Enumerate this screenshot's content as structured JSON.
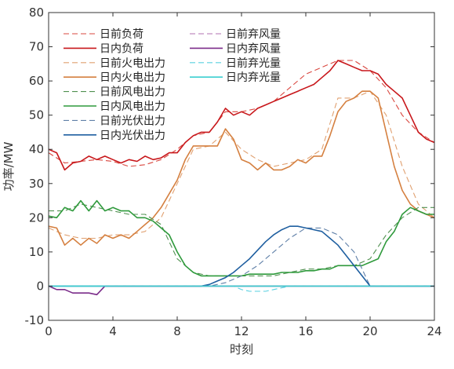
{
  "chart_data": {
    "type": "line",
    "title": "",
    "xlabel": "时刻",
    "ylabel": "功率/MW",
    "xlim": [
      0,
      24
    ],
    "ylim": [
      -10,
      80
    ],
    "xticks": [
      0,
      4,
      8,
      12,
      16,
      20,
      24
    ],
    "yticks": [
      -10,
      0,
      10,
      20,
      30,
      40,
      50,
      60,
      70,
      80
    ],
    "grid": false,
    "legend_position": "top-left, two columns",
    "series": [
      {
        "name": "日前负荷",
        "color": "#d9473f",
        "dash": "dashed",
        "x": [
          0,
          1,
          2,
          3,
          4,
          5,
          6,
          7,
          8,
          9,
          10,
          11,
          12,
          13,
          14,
          15,
          16,
          17,
          18,
          19,
          20,
          21,
          22,
          23,
          24
        ],
        "y": [
          39,
          36,
          36.5,
          37,
          36.5,
          35,
          35.5,
          37,
          40,
          44,
          45,
          51,
          51,
          52,
          54,
          58,
          62,
          64,
          66,
          66,
          63,
          58,
          50,
          45,
          42
        ]
      },
      {
        "name": "日内负荷",
        "color": "#c8171b",
        "dash": "solid",
        "x": [
          0,
          0.5,
          1,
          1.5,
          2,
          2.5,
          3,
          3.5,
          4,
          4.5,
          5,
          5.5,
          6,
          6.5,
          7,
          7.5,
          8,
          8.5,
          9,
          9.5,
          10,
          10.5,
          11,
          11.5,
          12,
          12.5,
          13,
          13.5,
          14,
          14.5,
          15,
          15.5,
          16,
          16.5,
          17,
          17.5,
          18,
          18.5,
          19,
          19.5,
          20,
          20.5,
          21,
          21.5,
          22,
          22.5,
          23,
          23.5,
          24
        ],
        "y": [
          40,
          39,
          34,
          36,
          36.5,
          38,
          37,
          38,
          37,
          36,
          37,
          36.5,
          38,
          37,
          37.5,
          39,
          39,
          42,
          44,
          45,
          45,
          48,
          52,
          50,
          51,
          50,
          52,
          53,
          54,
          55,
          56,
          57,
          58,
          59,
          61,
          63,
          66,
          65,
          64,
          63,
          63,
          62,
          59,
          57,
          55,
          50,
          45,
          43,
          42
        ]
      },
      {
        "name": "日前火电出力",
        "color": "#e0a070",
        "dash": "dashed",
        "x": [
          0,
          1,
          2,
          3,
          4,
          5,
          6,
          7,
          8,
          9,
          10,
          11,
          12,
          13,
          14,
          15,
          16,
          17,
          18,
          19,
          20,
          21,
          22,
          23,
          24
        ],
        "y": [
          17,
          15,
          14,
          14,
          15,
          15,
          16,
          20,
          30,
          40,
          41,
          45,
          40,
          37,
          35,
          36,
          37,
          40,
          55,
          55,
          57,
          50,
          35,
          24,
          20
        ]
      },
      {
        "name": "日内火电出力",
        "color": "#d58040",
        "dash": "solid",
        "x": [
          0,
          0.5,
          1,
          1.5,
          2,
          2.5,
          3,
          3.5,
          4,
          4.5,
          5,
          5.5,
          6,
          6.5,
          7,
          7.5,
          8,
          8.5,
          9,
          9.5,
          10,
          10.5,
          11,
          11.5,
          12,
          12.5,
          13,
          13.5,
          14,
          14.5,
          15,
          15.5,
          16,
          16.5,
          17,
          17.5,
          18,
          18.5,
          19,
          19.5,
          20,
          20.5,
          21,
          21.5,
          22,
          22.5,
          23,
          23.5,
          24
        ],
        "y": [
          17.5,
          17,
          12,
          14,
          12,
          14,
          12.5,
          15,
          14,
          15,
          14,
          16,
          18,
          20,
          23,
          27,
          31,
          37,
          41,
          41,
          41,
          41,
          46,
          43,
          37,
          36,
          34,
          36,
          34,
          34,
          35,
          37,
          36,
          38,
          38,
          44,
          51,
          54,
          55,
          57,
          57,
          55,
          45,
          35,
          28,
          24,
          22,
          21,
          20
        ]
      },
      {
        "name": "日前风电出力",
        "color": "#509050",
        "dash": "dashed",
        "x": [
          0,
          1,
          2,
          3,
          4,
          5,
          6,
          7,
          8,
          9,
          10,
          11,
          12,
          13,
          14,
          15,
          16,
          17,
          18,
          19,
          20,
          21,
          22,
          23,
          24
        ],
        "y": [
          22,
          22,
          24,
          23,
          22,
          21,
          21,
          18,
          8,
          4,
          3,
          3,
          3,
          3,
          3,
          4,
          5,
          5,
          6,
          6,
          8,
          15,
          20,
          23,
          23
        ]
      },
      {
        "name": "日内风电出力",
        "color": "#2f9a3c",
        "dash": "solid",
        "x": [
          0,
          0.5,
          1,
          1.5,
          2,
          2.5,
          3,
          3.5,
          4,
          4.5,
          5,
          5.5,
          6,
          6.5,
          7,
          7.5,
          8,
          8.5,
          9,
          9.5,
          10,
          10.5,
          11,
          11.5,
          12,
          12.5,
          13,
          13.5,
          14,
          14.5,
          15,
          15.5,
          16,
          16.5,
          17,
          17.5,
          18,
          18.5,
          19,
          19.5,
          20,
          20.5,
          21,
          21.5,
          22,
          22.5,
          23,
          23.5,
          24
        ],
        "y": [
          20.5,
          20,
          23,
          22,
          25,
          22,
          25,
          22,
          23,
          22,
          22,
          20,
          20,
          19,
          17,
          15,
          10,
          6,
          4,
          3,
          3,
          3,
          3,
          3,
          3,
          3.5,
          3.5,
          3.5,
          3.5,
          4,
          4,
          4,
          4.5,
          4.5,
          5,
          5,
          6,
          6,
          6,
          6,
          7,
          8,
          13,
          16,
          21,
          23,
          22,
          21,
          21
        ]
      },
      {
        "name": "日前光伏出力",
        "color": "#6080a8",
        "dash": "dashed",
        "x": [
          0,
          10,
          11,
          12,
          13,
          14,
          15,
          16,
          17,
          18,
          19,
          19.5,
          20,
          24
        ],
        "y": [
          0,
          0,
          1,
          3,
          6,
          10,
          14,
          17,
          17,
          15,
          10,
          5,
          0,
          0
        ]
      },
      {
        "name": "日内光伏出力",
        "color": "#1f5fa0",
        "dash": "solid",
        "x": [
          0,
          9.5,
          10,
          10.5,
          11,
          11.5,
          12,
          12.5,
          13,
          13.5,
          14,
          14.5,
          15,
          15.5,
          16,
          16.5,
          17,
          17.5,
          18,
          18.5,
          19,
          19.5,
          20,
          24
        ],
        "y": [
          0,
          0,
          0.5,
          1.5,
          2.5,
          4,
          6,
          8,
          10.5,
          13,
          15,
          16.5,
          17.5,
          17.5,
          17,
          16.5,
          16,
          14,
          12,
          9,
          6,
          3,
          0,
          0
        ]
      },
      {
        "name": "日前弃风量",
        "color": "#b070b0",
        "dash": "dashed",
        "x": [
          0,
          24
        ],
        "y": [
          0,
          0
        ]
      },
      {
        "name": "日内弃风量",
        "color": "#7b2c8a",
        "dash": "solid",
        "x": [
          0,
          0.5,
          1,
          1.5,
          2,
          2.5,
          3,
          3.5,
          4,
          24
        ],
        "y": [
          0,
          -1,
          -1,
          -2,
          -2,
          -2,
          -2.5,
          0,
          0,
          0
        ]
      },
      {
        "name": "日前弃光量",
        "color": "#5ad0e0",
        "dash": "dashed",
        "x": [
          0,
          11.5,
          12,
          12.5,
          13,
          13.5,
          14,
          14.5,
          15,
          24
        ],
        "y": [
          0,
          0,
          -1,
          -1.5,
          -1.5,
          -1.5,
          -1,
          -0.5,
          0,
          0
        ]
      },
      {
        "name": "日内弃光量",
        "color": "#3ccfd0",
        "dash": "solid",
        "x": [
          0,
          24
        ],
        "y": [
          0,
          0
        ]
      }
    ]
  }
}
